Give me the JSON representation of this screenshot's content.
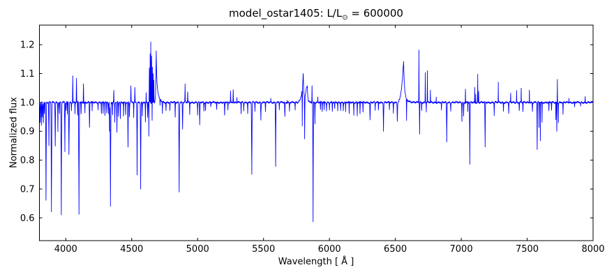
{
  "figure": {
    "title": {
      "prefix": "model_ostar1405: L/L",
      "subscript": "⊙",
      "suffix": " = 600000"
    },
    "x_axis": {
      "label": "Wavelength [ Å ]"
    },
    "y_axis": {
      "label": "Normalized flux"
    },
    "background_color": "#ffffff",
    "axis_color": "#000000"
  },
  "chart_data": {
    "type": "line",
    "title": "model_ostar1405: L/L⊙ = 600000",
    "xlabel": "Wavelength [ Å ]",
    "ylabel": "Normalized flux",
    "xlim": [
      3800,
      8000
    ],
    "ylim": [
      0.521,
      1.268
    ],
    "x_ticks": [
      4000,
      4500,
      5000,
      5500,
      6000,
      6500,
      7000,
      7500,
      8000
    ],
    "y_ticks": [
      0.6,
      0.7,
      0.8,
      0.9,
      1.0,
      1.1,
      1.2
    ],
    "grid": false,
    "legend": false,
    "line_color": "#0000ff",
    "continuum_level": 1.0,
    "noise_amplitude": 0.0045,
    "features_format": [
      "wavelength_angstrom",
      "flux_at_extremum",
      "half_width_angstrom"
    ],
    "features": [
      [
        3806,
        0.93,
        4
      ],
      [
        3815,
        0.92,
        4
      ],
      [
        3823,
        0.95,
        3
      ],
      [
        3829,
        0.93,
        4
      ],
      [
        3838,
        0.965,
        3
      ],
      [
        3850,
        0.66,
        5
      ],
      [
        3872,
        0.85,
        4
      ],
      [
        3891,
        0.62,
        5
      ],
      [
        3920,
        0.85,
        4
      ],
      [
        3940,
        0.9,
        3
      ],
      [
        3952,
        0.96,
        3
      ],
      [
        3966,
        0.61,
        5
      ],
      [
        3993,
        0.83,
        4
      ],
      [
        4002,
        0.97,
        3
      ],
      [
        4012,
        0.96,
        3
      ],
      [
        4024,
        0.82,
        5
      ],
      [
        4043,
        0.97,
        3
      ],
      [
        4053,
        1.095,
        3
      ],
      [
        4070,
        0.96,
        3
      ],
      [
        4081,
        1.085,
        3
      ],
      [
        4090,
        0.955,
        3
      ],
      [
        4100,
        0.61,
        5
      ],
      [
        4116,
        0.96,
        3
      ],
      [
        4134,
        1.065,
        3
      ],
      [
        4145,
        0.965,
        3
      ],
      [
        4180,
        0.915,
        4
      ],
      [
        4200,
        0.97,
        3
      ],
      [
        4245,
        0.975,
        3
      ],
      [
        4270,
        0.965,
        3
      ],
      [
        4283,
        0.96,
        3
      ],
      [
        4297,
        0.955,
        3
      ],
      [
        4310,
        0.96,
        3
      ],
      [
        4323,
        0.96,
        3
      ],
      [
        4332,
        0.9,
        3
      ],
      [
        4339,
        0.64,
        5
      ],
      [
        4355,
        0.96,
        3
      ],
      [
        4364,
        1.04,
        3
      ],
      [
        4372,
        0.93,
        3
      ],
      [
        4388,
        0.895,
        4
      ],
      [
        4400,
        0.95,
        3
      ],
      [
        4414,
        0.94,
        3
      ],
      [
        4438,
        0.955,
        3
      ],
      [
        4454,
        0.96,
        3
      ],
      [
        4472,
        0.845,
        4
      ],
      [
        4483,
        0.95,
        3
      ],
      [
        4494,
        1.058,
        3
      ],
      [
        4515,
        0.95,
        3
      ],
      [
        4524,
        1.05,
        3
      ],
      [
        4541,
        0.75,
        4
      ],
      [
        4568,
        0.7,
        4
      ],
      [
        4581,
        0.95,
        3
      ],
      [
        4604,
        0.93,
        3
      ],
      [
        4610,
        1.03,
        2
      ],
      [
        4621,
        0.95,
        3
      ],
      [
        4630,
        0.88,
        2
      ],
      [
        4634,
        1.12,
        2.5
      ],
      [
        4640,
        1.17,
        2.5
      ],
      [
        4645,
        1.21,
        2.5
      ],
      [
        4651,
        1.16,
        2.5
      ],
      [
        4655,
        0.94,
        1.5
      ],
      [
        4658,
        1.12,
        2.5
      ],
      [
        4663,
        1.1,
        2.5
      ],
      [
        4668,
        1.08,
        2.5
      ],
      [
        4715,
        0.975,
        3
      ],
      [
        4733,
        0.96,
        3
      ],
      [
        4760,
        0.975,
        3
      ],
      [
        4790,
        0.97,
        3
      ],
      [
        4830,
        0.95,
        3
      ],
      [
        4860,
        0.69,
        5
      ],
      [
        4886,
        0.91,
        4
      ],
      [
        4905,
        1.063,
        3
      ],
      [
        4925,
        1.035,
        3
      ],
      [
        4940,
        0.96,
        3
      ],
      [
        5000,
        0.955,
        3
      ],
      [
        5016,
        0.92,
        4
      ],
      [
        5048,
        0.97,
        3
      ],
      [
        5060,
        0.975,
        3
      ],
      [
        5100,
        0.985,
        3
      ],
      [
        5145,
        0.975,
        3
      ],
      [
        5205,
        0.955,
        4
      ],
      [
        5230,
        0.97,
        3
      ],
      [
        5250,
        1.04,
        3
      ],
      [
        5270,
        1.048,
        3
      ],
      [
        5298,
        1.02,
        2
      ],
      [
        5330,
        0.96,
        3
      ],
      [
        5350,
        0.97,
        3
      ],
      [
        5380,
        0.965,
        3
      ],
      [
        5411,
        0.75,
        5
      ],
      [
        5435,
        0.97,
        3
      ],
      [
        5480,
        0.94,
        4
      ],
      [
        5515,
        0.97,
        3
      ],
      [
        5555,
        1.015,
        2
      ],
      [
        5592,
        0.78,
        4
      ],
      [
        5620,
        0.975,
        3
      ],
      [
        5662,
        0.95,
        4
      ],
      [
        5680,
        1.01,
        2
      ],
      [
        5697,
        0.97,
        3
      ],
      [
        5740,
        0.97,
        3
      ],
      [
        5794,
        0.87,
        2.5
      ],
      [
        5812,
        0.86,
        3
      ],
      [
        5868,
        1.06,
        2.5
      ],
      [
        5876,
        0.588,
        4
      ],
      [
        5890,
        0.93,
        3
      ],
      [
        5912,
        1.02,
        2
      ],
      [
        5932,
        0.975,
        3
      ],
      [
        5945,
        0.97,
        3
      ],
      [
        5960,
        0.975,
        3
      ],
      [
        5978,
        0.97,
        3
      ],
      [
        6000,
        0.975,
        3
      ],
      [
        6022,
        0.97,
        3
      ],
      [
        6040,
        0.975,
        3
      ],
      [
        6063,
        0.97,
        3
      ],
      [
        6085,
        0.975,
        3
      ],
      [
        6105,
        0.972,
        3
      ],
      [
        6123,
        0.966,
        3
      ],
      [
        6150,
        0.96,
        3
      ],
      [
        6185,
        0.957,
        3
      ],
      [
        6211,
        0.955,
        3
      ],
      [
        6232,
        0.96,
        3
      ],
      [
        6255,
        0.965,
        3
      ],
      [
        6308,
        0.94,
        4
      ],
      [
        6347,
        0.97,
        3
      ],
      [
        6372,
        0.975,
        3
      ],
      [
        6410,
        0.9,
        4
      ],
      [
        6455,
        0.975,
        3
      ],
      [
        6485,
        0.965,
        3
      ],
      [
        6515,
        0.935,
        4
      ],
      [
        6585,
        0.92,
        3
      ],
      [
        6679,
        1.185,
        2.5
      ],
      [
        6684,
        0.89,
        3
      ],
      [
        6700,
        0.975,
        2
      ],
      [
        6727,
        1.105,
        2
      ],
      [
        6735,
        0.97,
        2
      ],
      [
        6743,
        1.11,
        2
      ],
      [
        6766,
        1.04,
        2
      ],
      [
        6810,
        1.02,
        2
      ],
      [
        6850,
        0.97,
        3
      ],
      [
        6890,
        0.865,
        4
      ],
      [
        6920,
        0.97,
        3
      ],
      [
        7005,
        0.935,
        3
      ],
      [
        7018,
        0.95,
        3
      ],
      [
        7032,
        1.046,
        2
      ],
      [
        7050,
        0.97,
        2
      ],
      [
        7065,
        0.785,
        4
      ],
      [
        7102,
        1.05,
        2
      ],
      [
        7110,
        1.03,
        2
      ],
      [
        7125,
        1.098,
        2
      ],
      [
        7132,
        1.04,
        2
      ],
      [
        7181,
        0.845,
        4
      ],
      [
        7250,
        0.955,
        3
      ],
      [
        7281,
        1.07,
        2
      ],
      [
        7320,
        0.97,
        3
      ],
      [
        7360,
        0.96,
        3
      ],
      [
        7375,
        1.03,
        2
      ],
      [
        7420,
        1.043,
        2
      ],
      [
        7440,
        0.975,
        3
      ],
      [
        7455,
        1.05,
        2
      ],
      [
        7468,
        0.97,
        3
      ],
      [
        7517,
        1.047,
        2
      ],
      [
        7540,
        0.97,
        3
      ],
      [
        7576,
        0.835,
        3
      ],
      [
        7590,
        0.91,
        2
      ],
      [
        7600,
        0.87,
        2.5
      ],
      [
        7613,
        0.93,
        2
      ],
      [
        7665,
        0.97,
        3
      ],
      [
        7685,
        0.975,
        3
      ],
      [
        7718,
        0.94,
        2
      ],
      [
        7725,
        0.9,
        3
      ],
      [
        7729,
        1.08,
        2
      ],
      [
        7737,
        0.93,
        2
      ],
      [
        7772,
        0.955,
        3
      ],
      [
        7817,
        1.018,
        2
      ],
      [
        7860,
        0.985,
        3
      ],
      [
        7905,
        0.985,
        3
      ],
      [
        7940,
        1.018,
        2
      ]
    ],
    "anchored_features": [
      {
        "points": [
          [
            6522,
            1.0
          ],
          [
            6534,
            1.012
          ],
          [
            6546,
            1.045
          ],
          [
            6555,
            1.085
          ],
          [
            6560,
            1.125
          ],
          [
            6563,
            1.14
          ],
          [
            6566,
            1.09
          ],
          [
            6571,
            1.045
          ],
          [
            6580,
            1.018
          ],
          [
            6595,
            1.007
          ],
          [
            6615,
            1.002
          ],
          [
            6640,
            1.0
          ]
        ]
      },
      {
        "points": [
          [
            4674,
            1.0
          ],
          [
            4680,
            1.02
          ],
          [
            4683,
            1.08
          ],
          [
            4686,
            1.175
          ],
          [
            4688,
            1.12
          ],
          [
            4692,
            1.065
          ],
          [
            4699,
            1.035
          ],
          [
            4709,
            1.015
          ],
          [
            4725,
            1.005
          ],
          [
            4745,
            1.0
          ]
        ]
      },
      {
        "points": [
          [
            5762,
            1.0
          ],
          [
            5776,
            1.008
          ],
          [
            5788,
            1.028
          ],
          [
            5797,
            1.06
          ],
          [
            5801,
            1.1
          ],
          [
            5805,
            1.04
          ],
          [
            5813,
            1.012
          ],
          [
            5826,
            1.05
          ],
          [
            5832,
            1.055
          ],
          [
            5838,
            1.008
          ],
          [
            5850,
            1.0
          ]
        ]
      }
    ]
  }
}
